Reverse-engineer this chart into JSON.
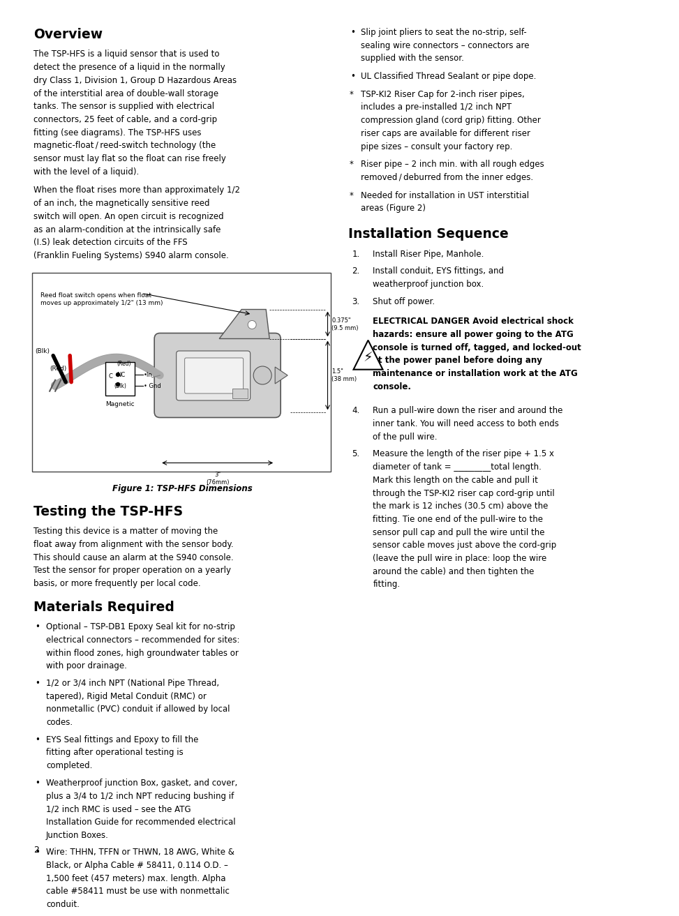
{
  "bg_color": "#ffffff",
  "page_number": "2",
  "overview_title": "Overview",
  "overview_p1": "The TSP-HFS is a liquid sensor that is used to detect the presence of a liquid in the normally dry Class 1, Division 1, Group D Hazardous Areas of the interstitial area of double-wall storage tanks. The sensor is supplied with electrical connectors, 25 feet of cable, and a cord-grip fitting (see diagrams). The TSP-HFS uses magnetic-float / reed-switch technology (the sensor must lay flat so the float can rise freely with the level of a liquid).",
  "overview_p2": "When the float rises more than approximately 1/2 of an inch, the magnetically sensitive reed switch will open. An open circuit is recognized as an alarm-condition at the intrinsically safe (I.S) leak detection circuits of the FFS (Franklin Fueling Systems) S940 alarm console.",
  "figure_caption": "Figure 1: TSP-HFS Dimensions",
  "testing_title": "Testing the TSP-HFS",
  "testing_body": "Testing this device is a matter of moving the float away from alignment with the sensor body. This should cause an alarm at the S940 console. Test the sensor for proper operation on a yearly basis, or more frequently per local code.",
  "materials_title": "Materials Required",
  "materials_bullets": [
    "Optional – TSP-DB1 Epoxy Seal kit for no-strip electrical connectors – recommended for sites: within flood zones, high groundwater tables or with poor drainage.",
    "1/2 or 3/4 inch NPT (National Pipe Thread, tapered), Rigid Metal Conduit (RMC) or nonmetallic (PVC) conduit if allowed by local codes.",
    "EYS Seal fittings and Epoxy to fill the fitting after operational testing is completed.",
    "Weatherproof junction Box, gasket, and cover, plus a 3/4 to 1/2 inch NPT reducing bushing if 1/2 inch RMC is used – see the ATG Installation Guide for recommended electrical Junction Boxes.",
    "Wire: THHN, TFFN or THWN, 18 AWG, White & Black, or Alpha Cable # 58411, 0.114 O.D. – 1,500 feet (457 meters) max. length. Alpha cable #58411 must be use with nonmettalic conduit."
  ],
  "right_bullets": [
    "Slip joint pliers to seat the no-strip, self-sealing wire connectors – connectors are supplied with the sensor.",
    "UL Classified Thread Sealant or pipe dope.",
    "*TSP-KI2 Riser Cap for 2-inch riser pipes, includes a pre-installed 1/2 inch NPT compression gland (cord grip) fitting. Other riser caps are available for different riser pipe sizes – consult your factory rep.",
    "* Riser pipe – 2 inch min. with all rough edges removed / deburred from the inner edges.",
    "* Needed for installation in UST interstitial areas (Figure 2)"
  ],
  "install_title": "Installation Sequence",
  "install_steps": [
    "Install Riser Pipe, Manhole.",
    "Install conduit, EYS fittings, and weatherproof junction box.",
    "Shut off power.",
    "Run a pull-wire down the riser and around the inner tank. You will need access to both ends of the pull wire.",
    "Measure the length of the riser pipe + 1.5 x diameter of tank = _________total length. Mark this length on the cable and pull it through the TSP-KI2 riser cap cord-grip until the mark is 12 inches (30.5 cm) above the fitting. Tie one end of the pull-wire to the sensor pull cap and pull the wire until the sensor cable moves just above the cord-grip (leave the pull wire in place: loop the wire around the cable) and then tighten the fitting."
  ],
  "warning_text": "ELECTRICAL DANGER Avoid electrical shock hazards: ensure all power going to the ATG console is turned off, tagged, and locked-out at the power panel before doing any maintenance or installation work at the ATG console."
}
